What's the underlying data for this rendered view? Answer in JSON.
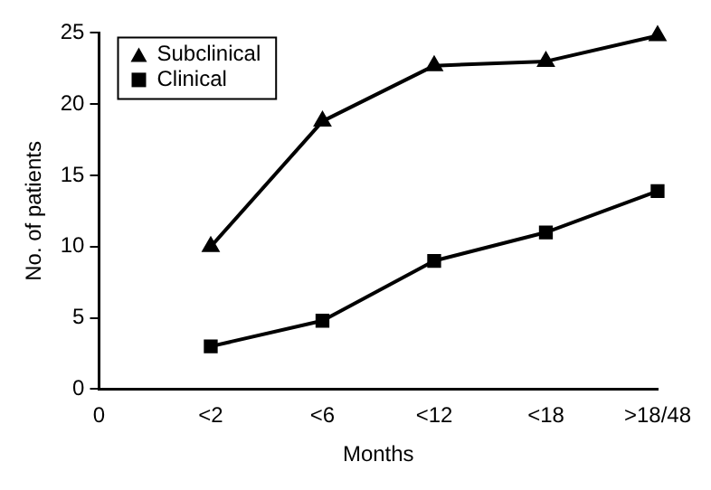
{
  "chart_data": {
    "type": "line",
    "xlabel": "Months",
    "ylabel": "No. of patients",
    "categories": [
      "0",
      "<2",
      "<6",
      "<12",
      "<18",
      ">18/48"
    ],
    "series": [
      {
        "name": "Subclinical",
        "color": "#000000",
        "marker": "triangle",
        "values": [
          null,
          10,
          18.8,
          22.7,
          23,
          24.8
        ]
      },
      {
        "name": "Clinical",
        "color": "#000000",
        "marker": "square",
        "values": [
          null,
          3,
          4.8,
          9,
          11,
          13.9
        ]
      }
    ],
    "ylim": [
      0,
      25
    ],
    "yticks": [
      0,
      5,
      10,
      15,
      20,
      25
    ],
    "grid": false,
    "legend": "top left",
    "line_style": "solid"
  }
}
